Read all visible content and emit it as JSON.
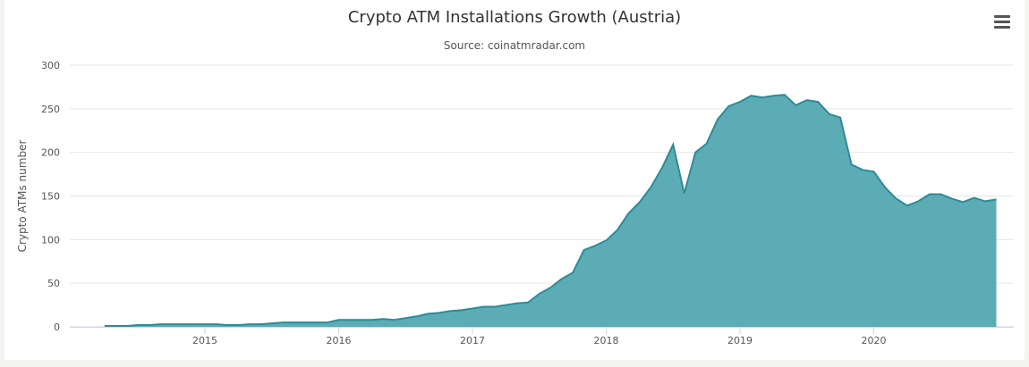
{
  "chart_data": {
    "type": "area",
    "title": "Crypto ATM Installations Growth (Austria)",
    "subtitle": "Source: coinatmradar.com",
    "xlabel": "",
    "ylabel": "Crypto ATMs number",
    "ylim": [
      0,
      300
    ],
    "y_ticks": [
      0,
      50,
      100,
      150,
      200,
      250,
      300
    ],
    "x_ticks": [
      "2015",
      "2016",
      "2017",
      "2018",
      "2019",
      "2020"
    ],
    "grid": true,
    "legend": "none",
    "colors": {
      "fill": "#4aa3ae",
      "line": "#2e8b96"
    },
    "x": [
      "2014-04",
      "2014-05",
      "2014-06",
      "2014-07",
      "2014-08",
      "2014-09",
      "2014-10",
      "2014-11",
      "2014-12",
      "2015-01",
      "2015-02",
      "2015-03",
      "2015-04",
      "2015-05",
      "2015-06",
      "2015-07",
      "2015-08",
      "2015-09",
      "2015-10",
      "2015-11",
      "2015-12",
      "2016-01",
      "2016-02",
      "2016-03",
      "2016-04",
      "2016-05",
      "2016-06",
      "2016-07",
      "2016-08",
      "2016-09",
      "2016-10",
      "2016-11",
      "2016-12",
      "2017-01",
      "2017-02",
      "2017-03",
      "2017-04",
      "2017-05",
      "2017-06",
      "2017-07",
      "2017-08",
      "2017-09",
      "2017-10",
      "2017-11",
      "2017-12",
      "2018-01",
      "2018-02",
      "2018-03",
      "2018-04",
      "2018-05",
      "2018-06",
      "2018-07",
      "2018-08",
      "2018-09",
      "2018-10",
      "2018-11",
      "2018-12",
      "2019-01",
      "2019-02",
      "2019-03",
      "2019-04",
      "2019-05",
      "2019-06",
      "2019-07",
      "2019-08",
      "2019-09",
      "2019-10",
      "2019-11",
      "2019-12",
      "2020-01",
      "2020-02",
      "2020-03",
      "2020-04",
      "2020-05",
      "2020-06",
      "2020-07",
      "2020-08",
      "2020-09",
      "2020-10",
      "2020-11",
      "2020-12"
    ],
    "series": [
      {
        "values": [
          1,
          1,
          1,
          2,
          2,
          3,
          3,
          3,
          3,
          3,
          3,
          2,
          2,
          3,
          3,
          4,
          5,
          5,
          5,
          5,
          5,
          8,
          8,
          8,
          8,
          9,
          8,
          10,
          12,
          15,
          16,
          18,
          19,
          21,
          23,
          23,
          25,
          27,
          28,
          38,
          45,
          55,
          62,
          88,
          93,
          99,
          111,
          130,
          143,
          160,
          182,
          209,
          153,
          200,
          210,
          238,
          253,
          258,
          265,
          263,
          265,
          266,
          254,
          260,
          258,
          244,
          240,
          186,
          180,
          178,
          160,
          147,
          139,
          144,
          152,
          152,
          147,
          143,
          148,
          144,
          146
        ]
      }
    ]
  }
}
